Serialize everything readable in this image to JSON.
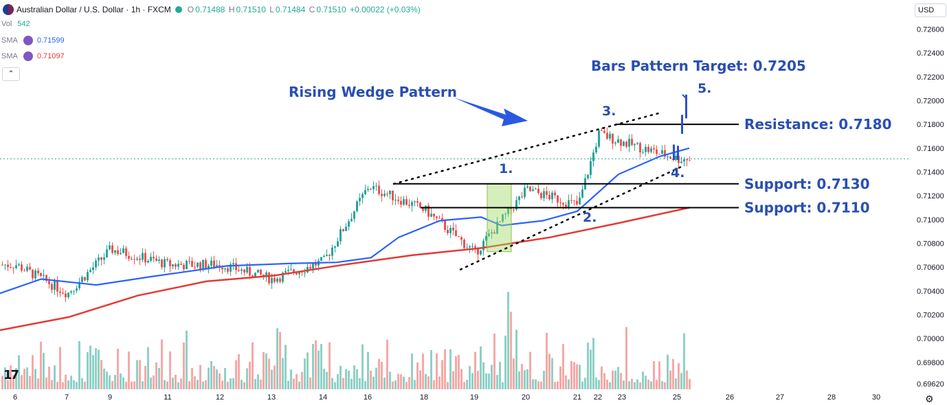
{
  "header": {
    "symbol": "Australian Dollar / U.S. Dollar · 1h · FXCM",
    "open_label": "O",
    "open": "0.71488",
    "high_label": "H",
    "high": "0.71510",
    "low_label": "L",
    "low": "0.71484",
    "close_label": "C",
    "close": "0.71510",
    "change": "+0.00022 (+0.03%)"
  },
  "indicators": {
    "vol_label": "Vol",
    "vol_value": "542",
    "sma1_label": "SMA",
    "sma1_value": "0.71599",
    "sma1_color": "#2962ff",
    "sma2_label": "SMA",
    "sma2_value": "0.71097",
    "sma2_color": "#e53935",
    "collapse_glyph": "⌃"
  },
  "currency": "USD",
  "logo": "17",
  "settings_icon": "gear-icon",
  "chart_data": {
    "type": "candlestick",
    "y_range": [
      0.6962,
      0.7264
    ],
    "y_ticks": [
      "0.72600",
      "0.72400",
      "0.72200",
      "0.72000",
      "0.71800",
      "0.71600",
      "0.71400",
      "0.71200",
      "0.71000",
      "0.70800",
      "0.70600",
      "0.70400",
      "0.70200",
      "0.70000",
      "0.69800",
      "0.69620"
    ],
    "x_ticks": [
      "6",
      "7",
      "9",
      "11",
      "12",
      "13",
      "14",
      "16",
      "18",
      "19",
      "20",
      "21",
      "22",
      "23",
      "25",
      "26",
      "27",
      "28",
      "30"
    ],
    "approx_close_path": [
      {
        "x": "6",
        "y": 0.7062
      },
      {
        "x": "7",
        "y": 0.7038
      },
      {
        "x": "9",
        "y": 0.7075
      },
      {
        "x": "11",
        "y": 0.7062
      },
      {
        "x": "12",
        "y": 0.7062
      },
      {
        "x": "13",
        "y": 0.705
      },
      {
        "x": "14",
        "y": 0.7065
      },
      {
        "x": "16",
        "y": 0.7128
      },
      {
        "x": "18",
        "y": 0.7108
      },
      {
        "x": "19",
        "y": 0.7072
      },
      {
        "x": "20",
        "y": 0.7125
      },
      {
        "x": "21",
        "y": 0.7112
      },
      {
        "x": "22",
        "y": 0.7172
      },
      {
        "x": "23",
        "y": 0.7165
      },
      {
        "x": "25",
        "y": 0.7151
      }
    ],
    "series": [
      {
        "name": "SMA",
        "value_label": "0.71599",
        "color": "#2962ff"
      },
      {
        "name": "SMA",
        "value_label": "0.71097",
        "color": "#e53935"
      }
    ],
    "levels": [
      {
        "label": "Resistance: 0.7180",
        "value": 0.718
      },
      {
        "label": "Support: 0.7130",
        "value": 0.713
      },
      {
        "label": "Support: 0.7110",
        "value": 0.711
      }
    ],
    "annotations": {
      "wedge_label": "Rising Wedge Pattern",
      "target_label": "Bars Pattern Target: 0.7205",
      "target_value": 0.7205,
      "points": [
        "1.",
        "2.",
        "3.",
        "4.",
        "5."
      ]
    },
    "grid": false,
    "last_price": 0.7151
  }
}
